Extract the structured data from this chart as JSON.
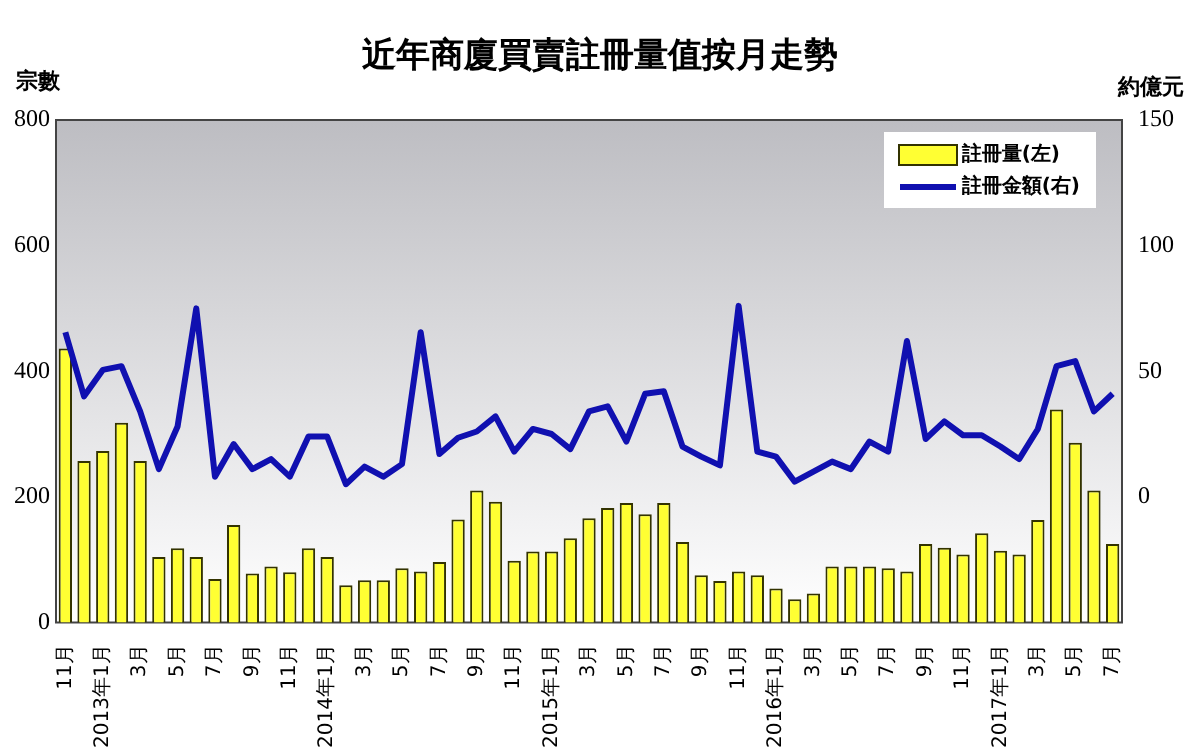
{
  "chart_data": {
    "type": "bar",
    "title": "近年商廈買賣註冊量值按月走勢",
    "ylabel": "宗數",
    "y2label": "約億元",
    "categories": [
      "11月",
      null,
      "2013年1月",
      null,
      "3月",
      null,
      "5月",
      null,
      "7月",
      null,
      "9月",
      null,
      "11月",
      null,
      "2014年1月",
      null,
      "3月",
      null,
      "5月",
      null,
      "7月",
      null,
      "9月",
      null,
      "11月",
      null,
      "2015年1月",
      null,
      "3月",
      null,
      "5月",
      null,
      "7月",
      null,
      "9月",
      null,
      "11月",
      null,
      "2016年1月",
      null,
      "3月",
      null,
      "5月",
      null,
      "7月",
      null,
      "9月",
      null,
      "11月",
      null,
      "2017年1月",
      null,
      "3月",
      null,
      "5月",
      null,
      "7月"
    ],
    "series": [
      {
        "name": "註冊量(左)",
        "color": "#ffff33",
        "values": [
          436,
          257,
          273,
          318,
          257,
          104,
          118,
          104,
          69,
          155,
          78,
          89,
          80,
          118,
          104,
          59,
          67,
          67,
          86,
          81,
          96,
          164,
          210,
          192,
          98,
          113,
          113,
          134,
          166,
          182,
          190,
          172,
          190,
          128,
          75,
          66,
          81,
          75,
          54,
          37,
          46,
          89,
          89,
          89,
          86,
          81,
          125,
          119,
          108,
          142,
          114,
          108,
          163,
          339,
          286,
          210,
          125
        ]
      },
      {
        "name": "註冊金額(右)",
        "type": "line",
        "axis": "y2",
        "color": "#1010b0",
        "values": [
          65.5,
          40,
          50.5,
          52,
          34,
          11,
          28,
          75,
          8,
          21,
          11,
          15,
          8,
          24,
          24,
          5,
          12,
          8,
          13,
          65.5,
          17,
          23.5,
          26,
          32,
          18,
          27,
          25,
          19,
          34,
          36,
          22,
          41,
          42,
          20,
          16,
          12.5,
          76,
          18,
          16,
          6,
          10,
          14,
          11,
          22,
          18,
          62,
          23,
          30,
          24.5,
          24.5,
          20,
          15,
          27,
          52,
          54,
          34,
          41
        ]
      }
    ],
    "ylim": [
      0,
      800
    ],
    "yticks": [
      0,
      200,
      400,
      600,
      800
    ],
    "y2lim": [
      -50,
      150
    ],
    "y2ticks": [
      0,
      50,
      100,
      150
    ],
    "grid": false,
    "legend": "top right",
    "marker": "none"
  }
}
